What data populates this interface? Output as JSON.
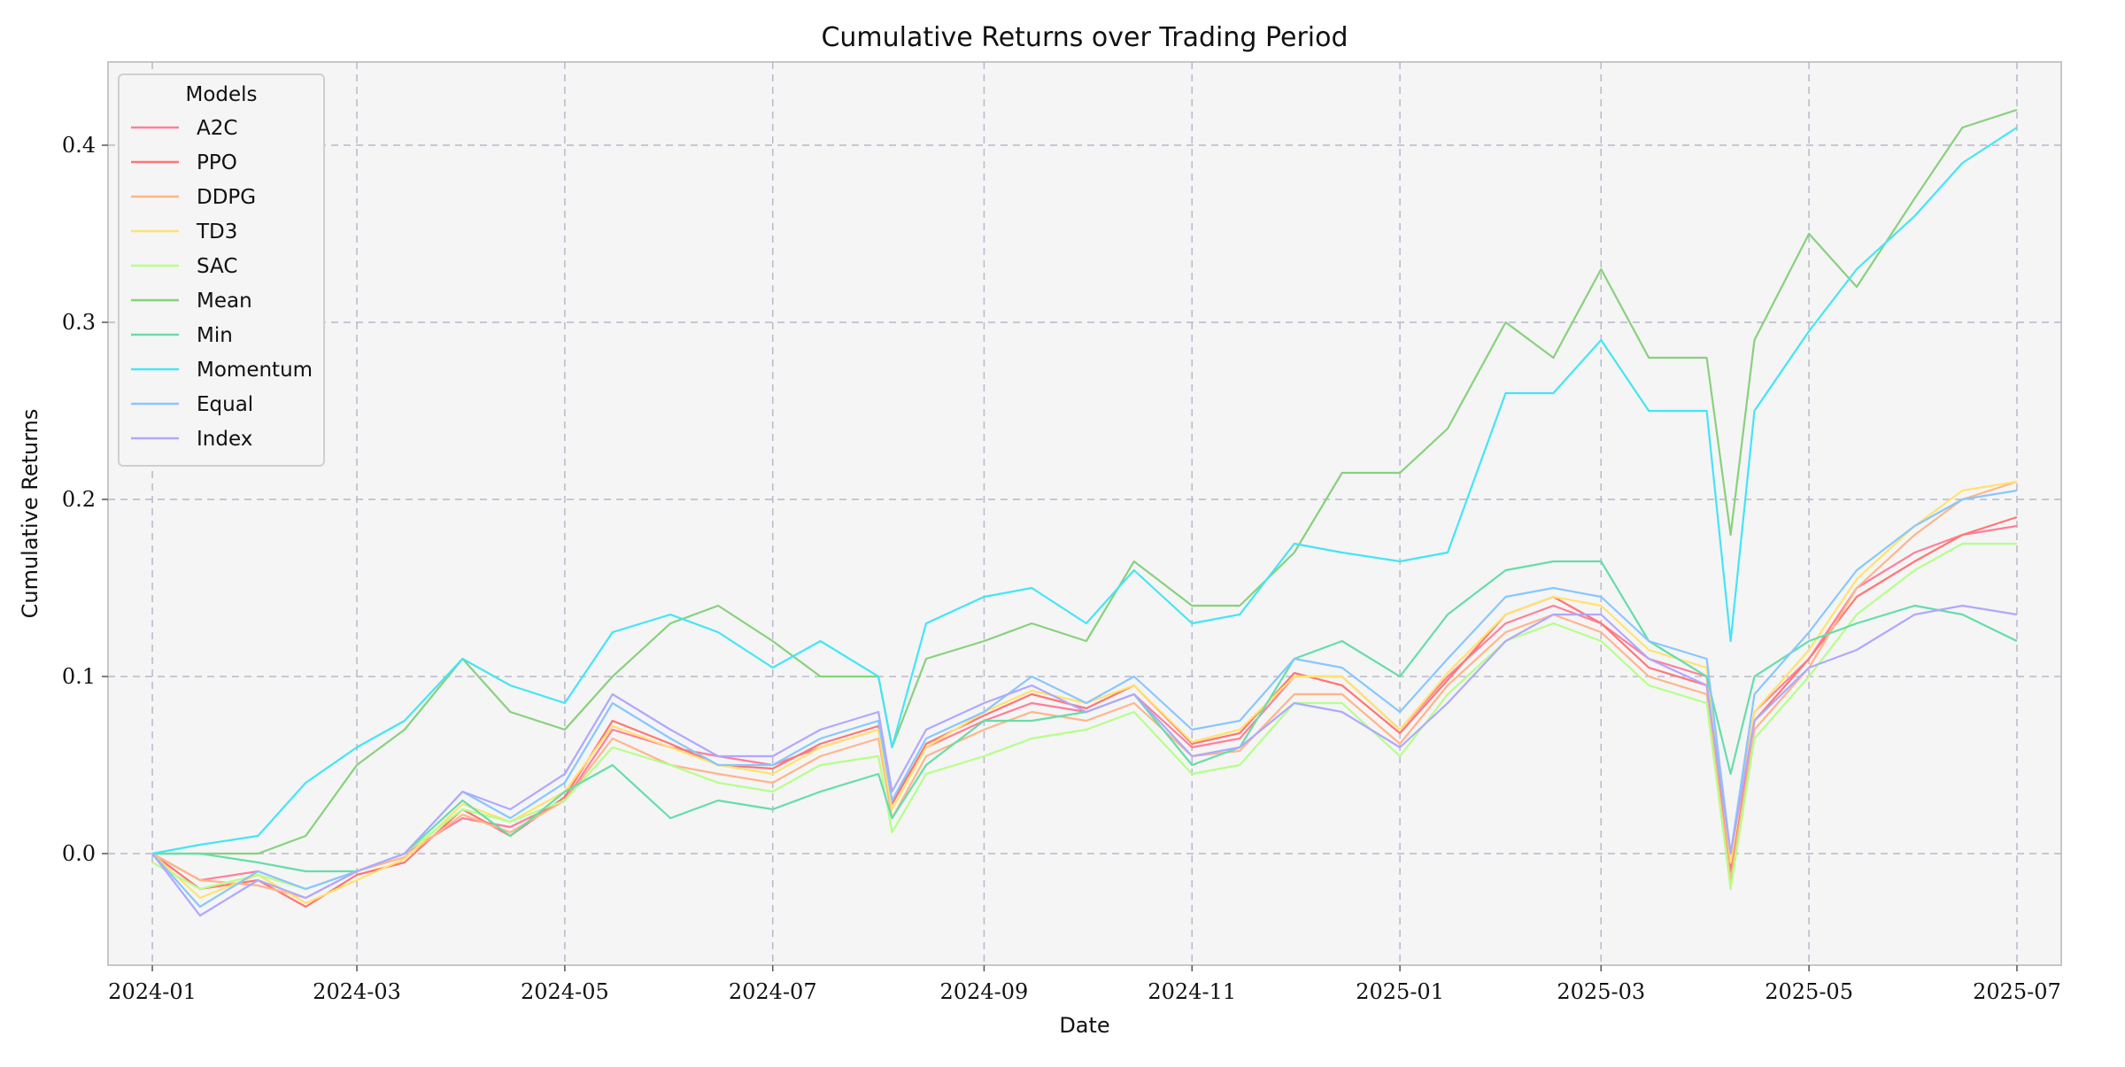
{
  "chart_data": {
    "type": "line",
    "title": "Cumulative Returns over Trading Period",
    "xlabel": "Date",
    "ylabel": "Cumulative Returns",
    "xlim": [
      "2023-12-19",
      "2025-07-14"
    ],
    "ylim": [
      -0.063,
      0.447
    ],
    "x_ticks": [
      "2024-01",
      "2024-03",
      "2024-05",
      "2024-07",
      "2024-09",
      "2024-11",
      "2025-01",
      "2025-03",
      "2025-05",
      "2025-07"
    ],
    "x_tick_dates": [
      "2024-01-01",
      "2024-03-01",
      "2024-05-01",
      "2024-07-01",
      "2024-09-01",
      "2024-11-01",
      "2025-01-01",
      "2025-03-01",
      "2025-05-01",
      "2025-07-01"
    ],
    "y_ticks": [
      "0.0",
      "0.1",
      "0.2",
      "0.3",
      "0.4"
    ],
    "y_tick_values": [
      0.0,
      0.1,
      0.2,
      0.3,
      0.4
    ],
    "grid": true,
    "legend": {
      "title": "Models",
      "placement": "top-left"
    },
    "x": [
      "2024-01-01",
      "2024-01-15",
      "2024-02-01",
      "2024-02-15",
      "2024-03-01",
      "2024-03-15",
      "2024-04-01",
      "2024-04-15",
      "2024-05-01",
      "2024-05-15",
      "2024-06-01",
      "2024-06-15",
      "2024-07-01",
      "2024-07-15",
      "2024-08-01",
      "2024-08-05",
      "2024-08-15",
      "2024-09-01",
      "2024-09-15",
      "2024-10-01",
      "2024-10-15",
      "2024-11-01",
      "2024-11-15",
      "2024-12-01",
      "2024-12-15",
      "2025-01-01",
      "2025-01-15",
      "2025-02-01",
      "2025-02-15",
      "2025-03-01",
      "2025-03-15",
      "2025-04-01",
      "2025-04-08",
      "2025-04-15",
      "2025-05-01",
      "2025-05-15",
      "2025-06-01",
      "2025-06-15",
      "2025-07-01"
    ],
    "series": [
      {
        "name": "A2C",
        "color": "#ff7f9a",
        "values": [
          0.0,
          -0.015,
          -0.01,
          -0.02,
          -0.01,
          0.0,
          0.02,
          0.015,
          0.03,
          0.07,
          0.06,
          0.055,
          0.05,
          0.06,
          0.07,
          0.03,
          0.06,
          0.075,
          0.085,
          0.08,
          0.09,
          0.06,
          0.065,
          0.1,
          0.1,
          0.07,
          0.1,
          0.13,
          0.14,
          0.13,
          0.11,
          0.1,
          0.0,
          0.08,
          0.11,
          0.15,
          0.17,
          0.18,
          0.185
        ]
      },
      {
        "name": "PPO",
        "color": "#ff7676",
        "values": [
          0.0,
          -0.02,
          -0.015,
          -0.03,
          -0.012,
          -0.005,
          0.025,
          0.01,
          0.032,
          0.075,
          0.062,
          0.05,
          0.048,
          0.062,
          0.072,
          0.028,
          0.062,
          0.078,
          0.09,
          0.082,
          0.095,
          0.062,
          0.068,
          0.102,
          0.095,
          0.068,
          0.098,
          0.135,
          0.145,
          0.13,
          0.105,
          0.095,
          -0.01,
          0.075,
          0.11,
          0.145,
          0.165,
          0.18,
          0.19
        ]
      },
      {
        "name": "DDPG",
        "color": "#ffb58a",
        "values": [
          0.0,
          -0.015,
          -0.018,
          -0.025,
          -0.01,
          -0.002,
          0.022,
          0.012,
          0.03,
          0.065,
          0.05,
          0.045,
          0.04,
          0.055,
          0.065,
          0.02,
          0.055,
          0.07,
          0.08,
          0.075,
          0.085,
          0.055,
          0.058,
          0.09,
          0.09,
          0.062,
          0.095,
          0.125,
          0.135,
          0.125,
          0.1,
          0.09,
          -0.015,
          0.07,
          0.105,
          0.15,
          0.18,
          0.2,
          0.21
        ]
      },
      {
        "name": "TD3",
        "color": "#ffe36e",
        "values": [
          0.0,
          -0.025,
          -0.012,
          -0.028,
          -0.015,
          -0.003,
          0.028,
          0.018,
          0.035,
          0.072,
          0.06,
          0.05,
          0.045,
          0.06,
          0.07,
          0.025,
          0.06,
          0.08,
          0.092,
          0.085,
          0.095,
          0.063,
          0.07,
          0.1,
          0.1,
          0.07,
          0.102,
          0.135,
          0.145,
          0.14,
          0.115,
          0.105,
          -0.005,
          0.08,
          0.115,
          0.155,
          0.185,
          0.205,
          0.21
        ]
      },
      {
        "name": "SAC",
        "color": "#b5ff8a",
        "values": [
          -0.005,
          -0.02,
          -0.012,
          -0.02,
          -0.01,
          0.0,
          0.025,
          0.018,
          0.03,
          0.06,
          0.05,
          0.04,
          0.035,
          0.05,
          0.055,
          0.012,
          0.045,
          0.055,
          0.065,
          0.07,
          0.08,
          0.045,
          0.05,
          0.085,
          0.085,
          0.055,
          0.09,
          0.12,
          0.13,
          0.12,
          0.095,
          0.085,
          -0.02,
          0.065,
          0.1,
          0.135,
          0.16,
          0.175,
          0.175
        ]
      },
      {
        "name": "Mean",
        "color": "#88d17d",
        "values": [
          0.0,
          0.0,
          0.0,
          0.01,
          0.05,
          0.07,
          0.11,
          0.08,
          0.07,
          0.1,
          0.13,
          0.14,
          0.12,
          0.1,
          0.1,
          0.06,
          0.11,
          0.12,
          0.13,
          0.12,
          0.165,
          0.14,
          0.14,
          0.17,
          0.215,
          0.215,
          0.24,
          0.3,
          0.28,
          0.33,
          0.28,
          0.28,
          0.18,
          0.29,
          0.35,
          0.32,
          0.37,
          0.41,
          0.42
        ]
      },
      {
        "name": "Min",
        "color": "#66ddaa",
        "values": [
          0.0,
          0.0,
          -0.005,
          -0.01,
          -0.01,
          0.0,
          0.03,
          0.01,
          0.035,
          0.05,
          0.02,
          0.03,
          0.025,
          0.035,
          0.045,
          0.02,
          0.05,
          0.075,
          0.075,
          0.08,
          0.09,
          0.05,
          0.06,
          0.11,
          0.12,
          0.1,
          0.135,
          0.16,
          0.165,
          0.165,
          0.12,
          0.1,
          0.045,
          0.1,
          0.12,
          0.13,
          0.14,
          0.135,
          0.12
        ]
      },
      {
        "name": "Momentum",
        "color": "#44e5f5",
        "values": [
          0.0,
          0.005,
          0.01,
          0.04,
          0.06,
          0.075,
          0.11,
          0.095,
          0.085,
          0.125,
          0.135,
          0.125,
          0.105,
          0.12,
          0.1,
          0.06,
          0.13,
          0.145,
          0.15,
          0.13,
          0.16,
          0.13,
          0.135,
          0.175,
          0.17,
          0.165,
          0.17,
          0.26,
          0.26,
          0.29,
          0.25,
          0.25,
          0.12,
          0.25,
          0.295,
          0.33,
          0.36,
          0.39,
          0.41
        ]
      },
      {
        "name": "Equal",
        "color": "#88c7ff",
        "values": [
          0.0,
          -0.03,
          -0.01,
          -0.02,
          -0.01,
          0.0,
          0.035,
          0.02,
          0.04,
          0.085,
          0.065,
          0.05,
          0.05,
          0.065,
          0.075,
          0.03,
          0.065,
          0.08,
          0.1,
          0.085,
          0.1,
          0.07,
          0.075,
          0.11,
          0.105,
          0.08,
          0.11,
          0.145,
          0.15,
          0.145,
          0.12,
          0.11,
          0.0,
          0.09,
          0.125,
          0.16,
          0.185,
          0.2,
          0.205
        ]
      },
      {
        "name": "Index",
        "color": "#b0a8ff",
        "values": [
          0.0,
          -0.035,
          -0.015,
          -0.025,
          -0.01,
          0.0,
          0.035,
          0.025,
          0.045,
          0.09,
          0.07,
          0.055,
          0.055,
          0.07,
          0.08,
          0.035,
          0.07,
          0.085,
          0.095,
          0.08,
          0.09,
          0.055,
          0.06,
          0.085,
          0.08,
          0.06,
          0.085,
          0.12,
          0.135,
          0.135,
          0.11,
          0.095,
          0.0,
          0.075,
          0.105,
          0.115,
          0.135,
          0.14,
          0.135
        ]
      }
    ]
  }
}
